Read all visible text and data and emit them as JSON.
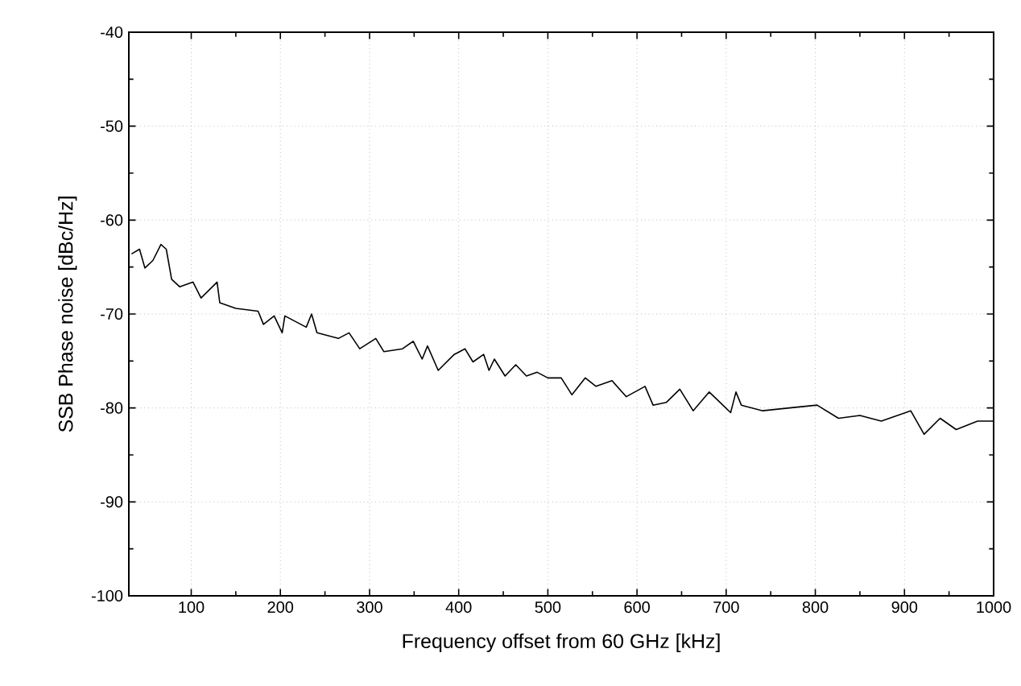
{
  "chart_data": {
    "type": "line",
    "xlabel": "Frequency offset from 60 GHz [kHz]",
    "ylabel": "SSB Phase noise [dBc/Hz]",
    "xlim": [
      30,
      1000
    ],
    "ylim": [
      -100,
      -40
    ],
    "xticks": [
      100,
      200,
      300,
      400,
      500,
      600,
      700,
      800,
      900,
      1000
    ],
    "yticks": [
      -100,
      -90,
      -80,
      -70,
      -60,
      -50,
      -40
    ],
    "grid": true,
    "marker": "none",
    "line_style": "solid",
    "x": [
      33,
      42,
      48,
      57,
      66,
      72,
      78,
      87,
      102,
      111,
      129,
      132,
      150,
      175,
      181,
      193,
      202,
      205,
      229,
      235,
      241,
      265,
      277,
      289,
      307,
      316,
      337,
      349,
      359,
      365,
      377,
      395,
      407,
      416,
      428,
      434,
      440,
      452,
      464,
      476,
      488,
      500,
      515,
      527,
      542,
      554,
      572,
      588,
      609,
      618,
      633,
      648,
      663,
      681,
      693,
      705,
      711,
      717,
      741,
      771,
      802,
      826,
      850,
      874,
      907,
      922,
      940,
      958,
      982,
      1000
    ],
    "series": [
      {
        "color": "#000000",
        "values": [
          -63.6,
          -63.1,
          -65.1,
          -64.3,
          -62.6,
          -63.1,
          -66.3,
          -67.1,
          -66.6,
          -68.3,
          -66.6,
          -68.8,
          -69.4,
          -69.7,
          -71.1,
          -70.2,
          -72.0,
          -70.2,
          -71.4,
          -70.0,
          -72.0,
          -72.6,
          -72.0,
          -73.7,
          -72.6,
          -74.0,
          -73.7,
          -72.9,
          -74.8,
          -73.4,
          -76.0,
          -74.3,
          -73.7,
          -75.1,
          -74.3,
          -76.0,
          -74.8,
          -76.6,
          -75.4,
          -76.6,
          -76.2,
          -76.8,
          -76.8,
          -78.6,
          -76.8,
          -77.7,
          -77.1,
          -78.8,
          -77.7,
          -79.7,
          -79.4,
          -78.0,
          -80.3,
          -78.3,
          -79.4,
          -80.5,
          -78.3,
          -79.7,
          -80.3,
          -80.0,
          -79.7,
          -81.1,
          -80.8,
          -81.4,
          -80.3,
          -82.8,
          -81.1,
          -82.3,
          -81.4,
          -81.4
        ]
      }
    ]
  }
}
